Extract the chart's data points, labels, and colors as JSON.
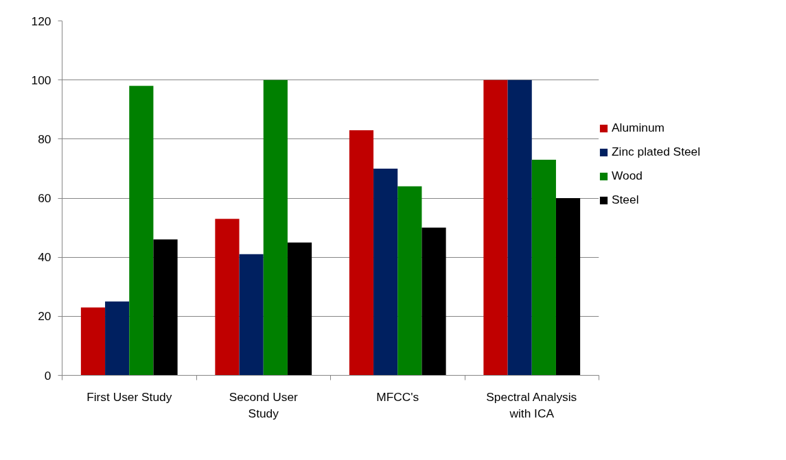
{
  "chart_data": {
    "type": "bar",
    "categories": [
      "First User Study",
      "Second User Study",
      "MFCC's",
      "Spectral Analysis with ICA"
    ],
    "series": [
      {
        "name": "Aluminum",
        "color": "#c00000",
        "values": [
          23,
          53,
          83,
          100
        ]
      },
      {
        "name": "Zinc plated Steel",
        "color": "#002060",
        "values": [
          25,
          41,
          70,
          100
        ]
      },
      {
        "name": "Wood",
        "color": "#008000",
        "values": [
          98,
          100,
          64,
          73
        ]
      },
      {
        "name": "Steel",
        "color": "#000000",
        "values": [
          46,
          45,
          50,
          60
        ]
      }
    ],
    "ylim": [
      0,
      120
    ],
    "yticks": [
      0,
      20,
      40,
      60,
      80,
      100,
      120
    ],
    "grid": "y",
    "legend": "right"
  }
}
